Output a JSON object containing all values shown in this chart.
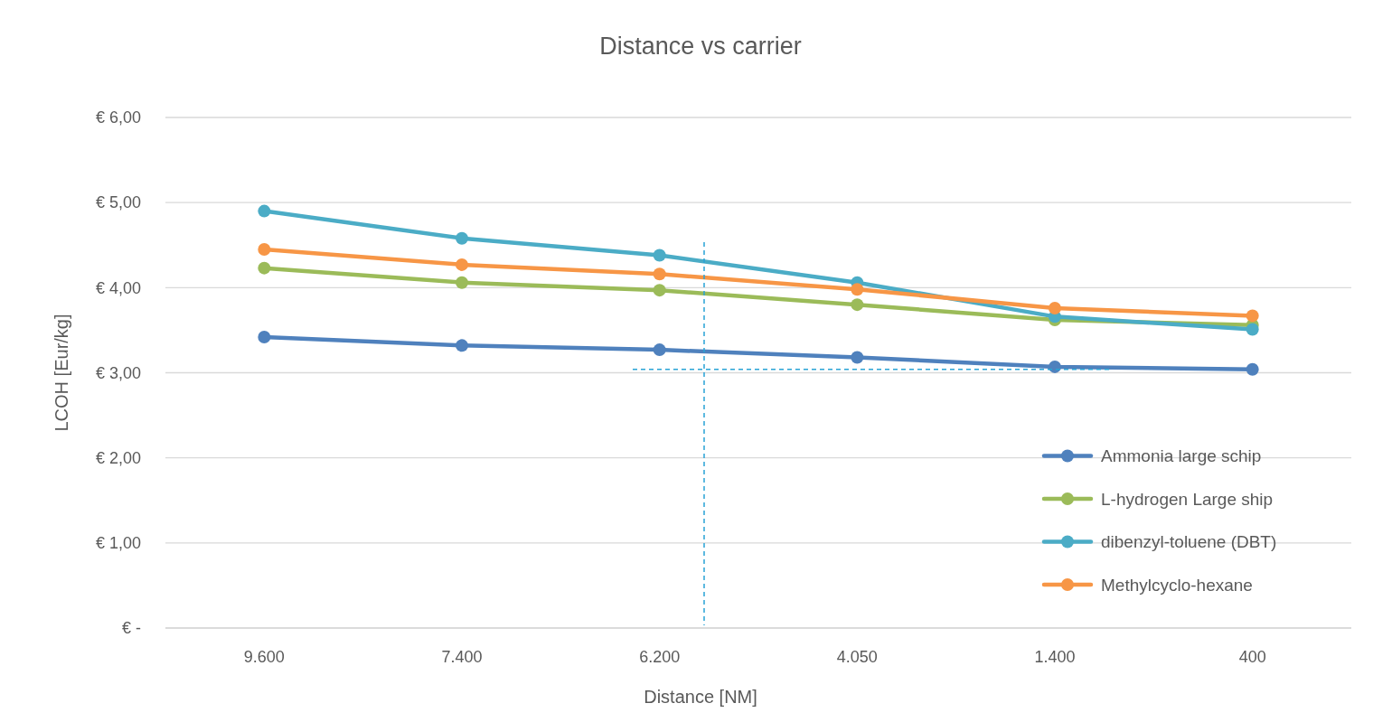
{
  "chart_data": {
    "type": "line",
    "title": "Distance vs carrier",
    "xlabel": "Distance [NM]",
    "ylabel": "LCOH [Eur/kg]",
    "categories": [
      "9.600",
      "7.400",
      "6.200",
      "4.050",
      "1.400",
      "400"
    ],
    "series": [
      {
        "name": "Ammonia large schip",
        "color": "#4f81bd",
        "values": [
          3.42,
          3.32,
          3.27,
          3.18,
          3.07,
          3.04
        ]
      },
      {
        "name": "L-hydrogen Large ship",
        "color": "#9bbb59",
        "values": [
          4.23,
          4.06,
          3.97,
          3.8,
          3.62,
          3.56
        ]
      },
      {
        "name": "dibenzyl-toluene (DBT)",
        "color": "#4bacc6",
        "values": [
          4.9,
          4.58,
          4.38,
          4.06,
          3.66,
          3.51
        ]
      },
      {
        "name": "Methylcyclo-hexane",
        "color": "#f79646",
        "values": [
          4.45,
          4.27,
          4.16,
          3.98,
          3.76,
          3.67
        ]
      }
    ],
    "ylim": [
      0,
      6
    ],
    "yticks": [
      {
        "value": 0,
        "label": "€ -"
      },
      {
        "value": 1,
        "label": "€ 1,00"
      },
      {
        "value": 2,
        "label": "€ 2,00"
      },
      {
        "value": 3,
        "label": "€ 3,00"
      },
      {
        "value": 4,
        "label": "€ 4,00"
      },
      {
        "value": 5,
        "label": "€ 5,00"
      },
      {
        "value": 6,
        "label": "€ 6,00"
      }
    ],
    "ref_lines": [
      {
        "axis": "y",
        "value": 3.04,
        "color": "#29a3d6",
        "line_style": "dashed"
      }
    ],
    "grid": "y",
    "legend": "bottom right",
    "marker": "circle",
    "line_style": "solid"
  }
}
